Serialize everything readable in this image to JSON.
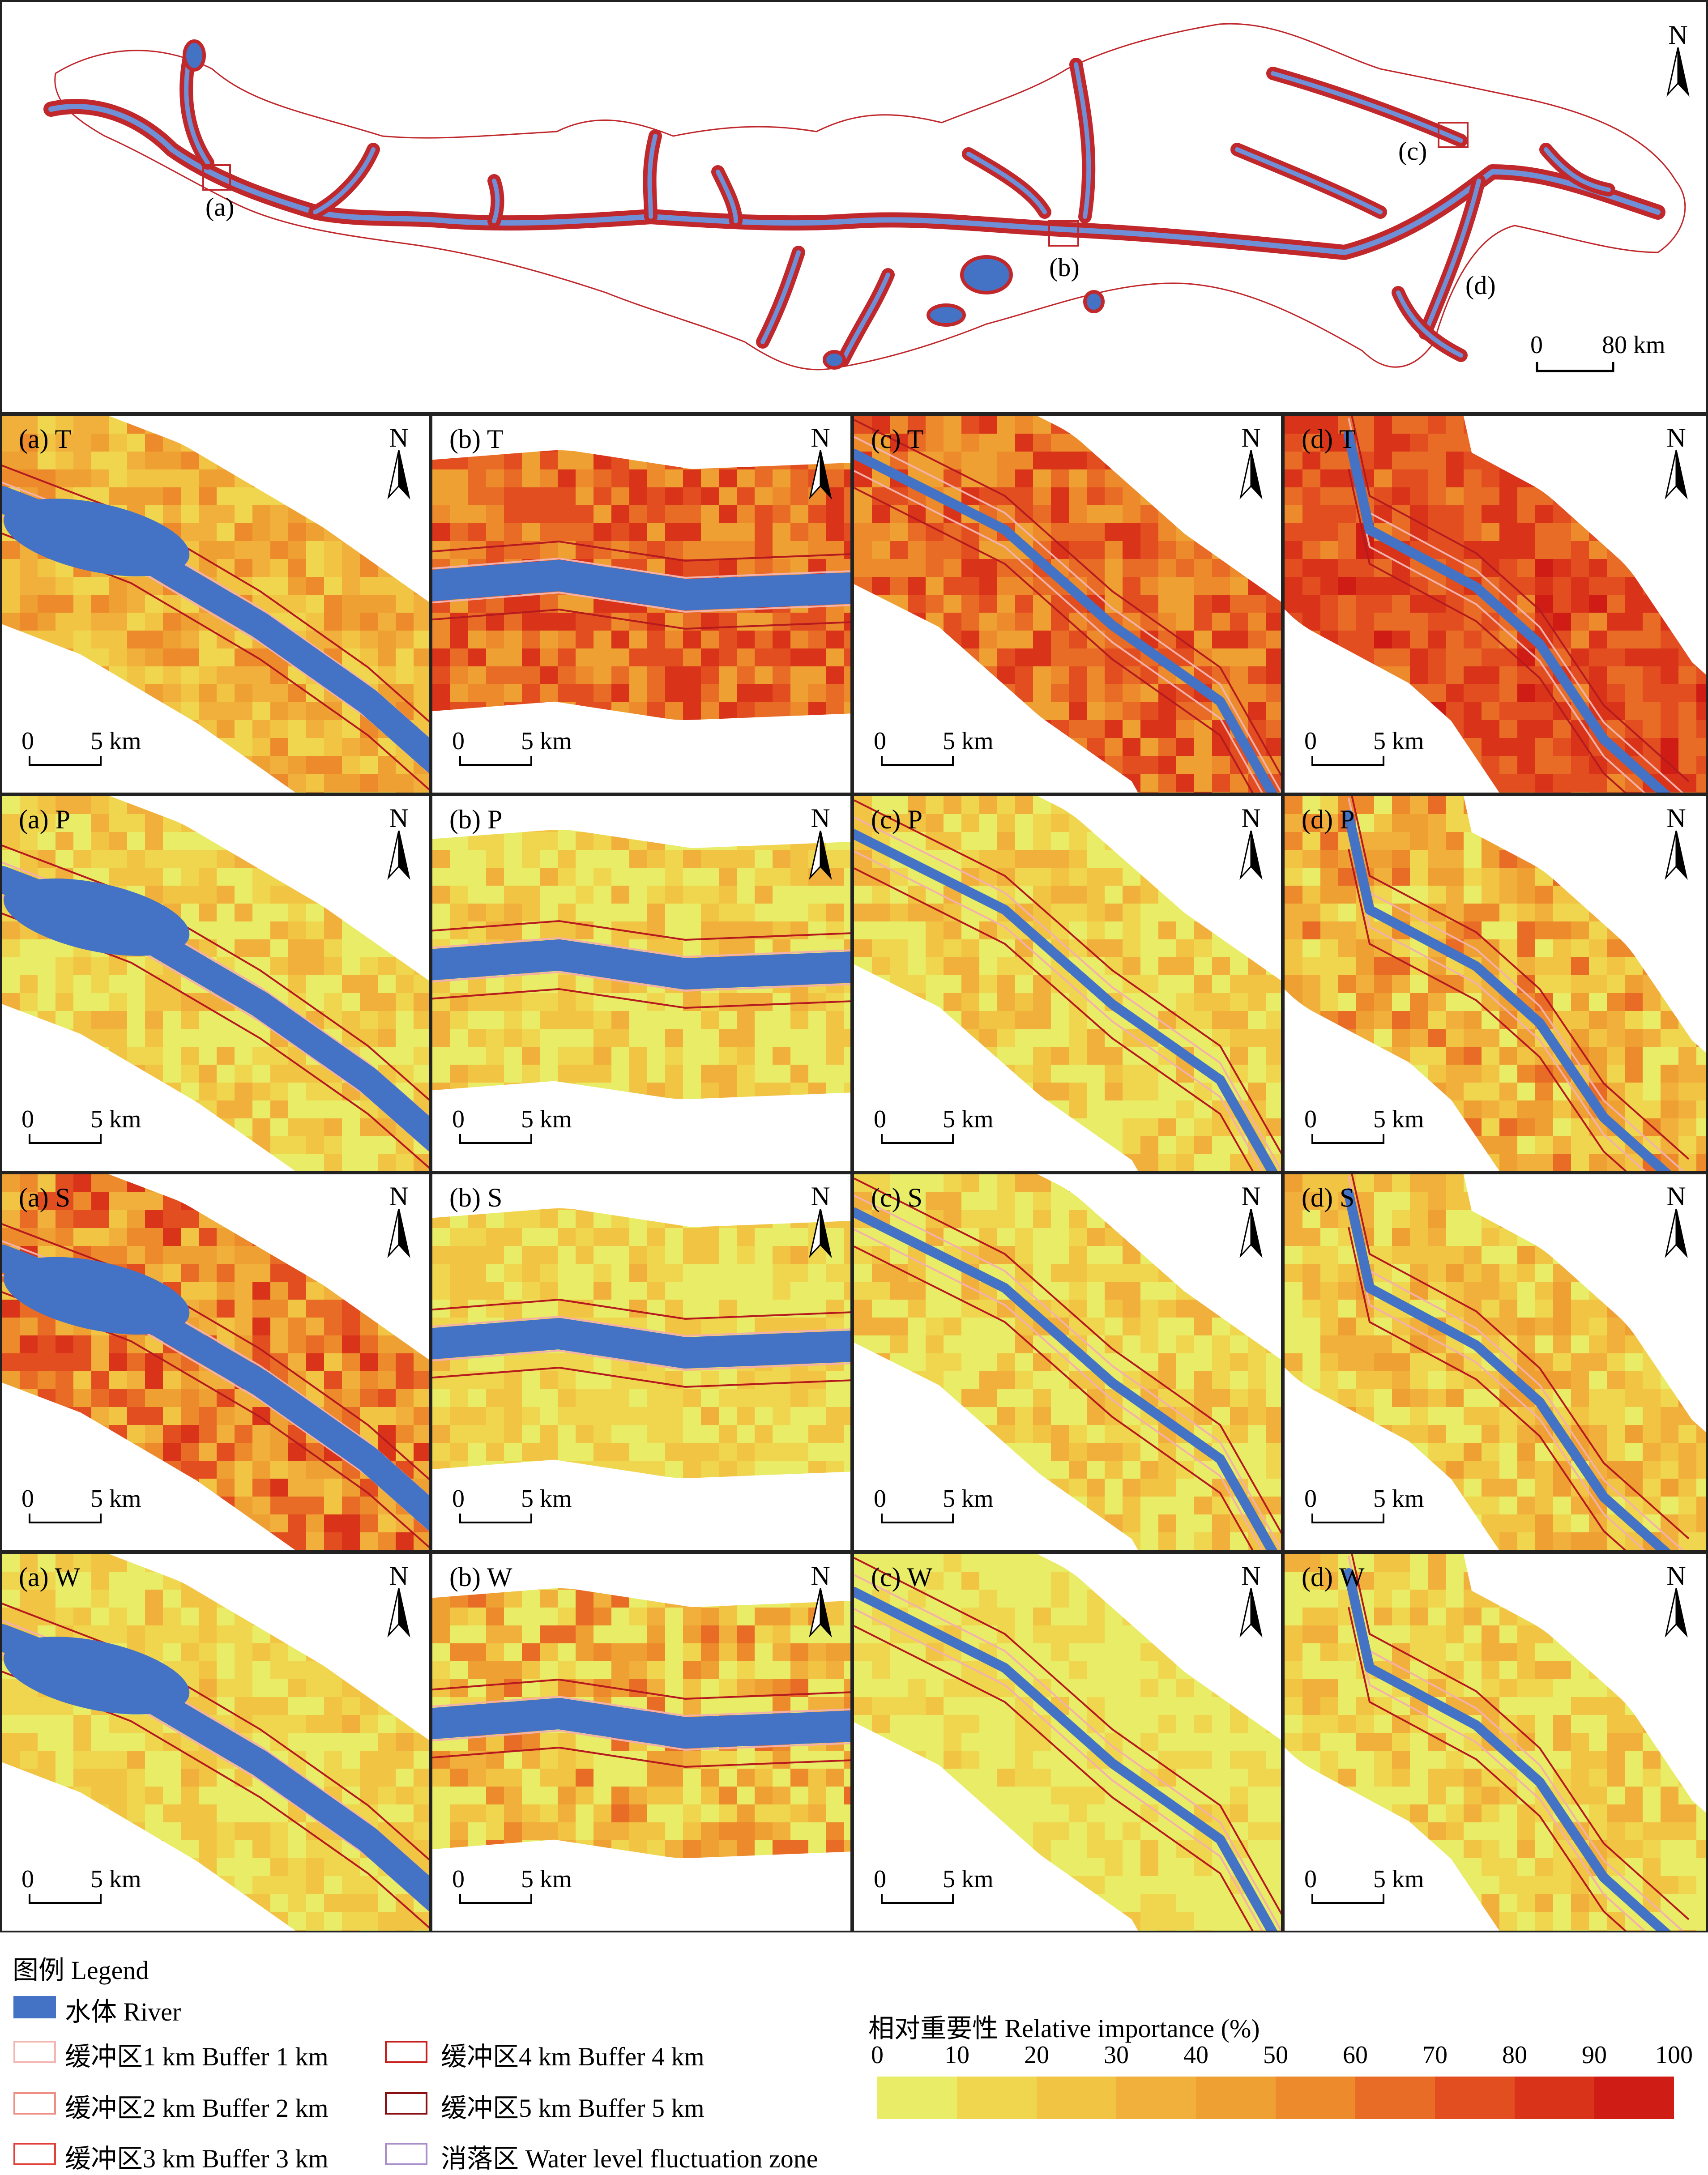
{
  "overview": {
    "callouts": [
      "(a)",
      "(b)",
      "(c)",
      "(d)"
    ],
    "north": "N",
    "scale": {
      "start": "0",
      "end": "80 km"
    }
  },
  "rows": [
    {
      "var": "T",
      "panels": [
        "(a) T",
        "(b) T",
        "(c) T",
        "(d) T"
      ]
    },
    {
      "var": "P",
      "panels": [
        "(a) P",
        "(b) P",
        "(c) P",
        "(d) P"
      ]
    },
    {
      "var": "S",
      "panels": [
        "(a) S",
        "(b) S",
        "(c) S",
        "(d) S"
      ]
    },
    {
      "var": "W",
      "panels": [
        "(a) W",
        "(b) W",
        "(c) W",
        "(d) W"
      ]
    }
  ],
  "panel_north": "N",
  "panel_scale": {
    "start": "0",
    "end": "5 km"
  },
  "legend": {
    "title": "图例 Legend",
    "items": [
      {
        "label": "水体 River",
        "color": "#4472c4"
      },
      {
        "label": "缓冲区1 km Buffer 1 km",
        "color": "#f4b6b0"
      },
      {
        "label": "缓冲区2 km Buffer 2 km",
        "color": "#ee8f86"
      },
      {
        "label": "缓冲区3 km Buffer 3 km",
        "color": "#e2413a"
      },
      {
        "label": "缓冲区4 km Buffer 4 km",
        "color": "#c8201c"
      },
      {
        "label": "缓冲区5 km Buffer 5 km",
        "color": "#8b1014"
      },
      {
        "label": "消落区 Water level fluctuation zone",
        "color": "#a98fc9"
      }
    ]
  },
  "importance": {
    "title": "相对重要性 Relative importance (%)",
    "ticks": [
      "0",
      "10",
      "20",
      "30",
      "40",
      "50",
      "60",
      "70",
      "80",
      "90",
      "100"
    ],
    "colors": [
      "#e8ec66",
      "#f0d64e",
      "#f2c443",
      "#f1b03b",
      "#efa033",
      "#ec8a2c",
      "#e86c26",
      "#e24e20",
      "#d9341a",
      "#cf1c15"
    ]
  },
  "colors": {
    "water": "#4472c4",
    "low": "#f0e058",
    "high": "#d5241a",
    "boundary": "#c0282c"
  }
}
